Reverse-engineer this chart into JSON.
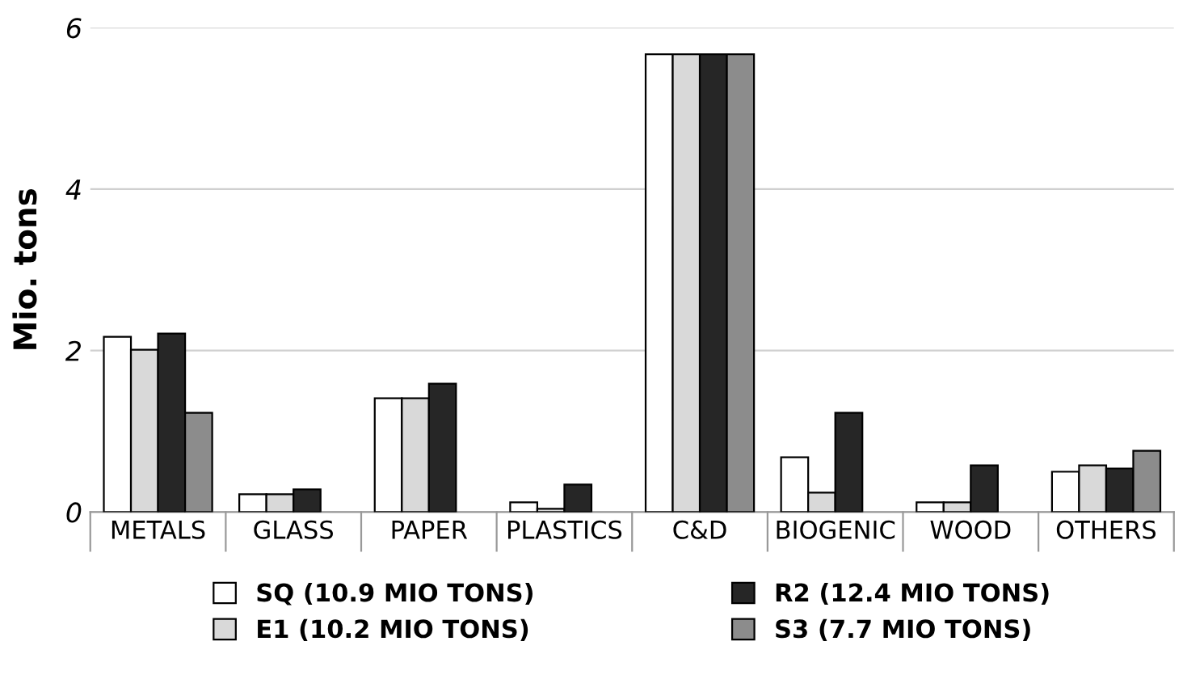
{
  "chart_data": {
    "type": "bar",
    "ylabel": "Mio. tons",
    "categories": [
      "METALS",
      "GLASS",
      "PAPER",
      "PLASTICS",
      "C&D",
      "BIOGENIC",
      "WOOD",
      "OTHERS"
    ],
    "series": [
      {
        "name": "SQ (10.9 MIO TONS)",
        "color": "#ffffff",
        "values": [
          2.17,
          0.22,
          1.41,
          0.12,
          5.67,
          0.68,
          0.12,
          0.5
        ]
      },
      {
        "name": "E1 (10.2 MIO TONS)",
        "color": "#d9d9d9",
        "values": [
          2.01,
          0.22,
          1.41,
          0.04,
          5.67,
          0.24,
          0.12,
          0.58
        ]
      },
      {
        "name": "R2 (12.4 MIO TONS)",
        "color": "#262626",
        "values": [
          2.21,
          0.28,
          1.59,
          0.34,
          5.67,
          1.23,
          0.58,
          0.54
        ]
      },
      {
        "name": "S3 (7.7 MIO TONS)",
        "color": "#8c8c8c",
        "values": [
          1.23,
          null,
          null,
          null,
          5.67,
          null,
          null,
          0.76
        ]
      }
    ],
    "ylim": [
      0,
      6
    ],
    "yticks": [
      0,
      2,
      4,
      6
    ],
    "grid": "y",
    "legend": "bottom"
  }
}
